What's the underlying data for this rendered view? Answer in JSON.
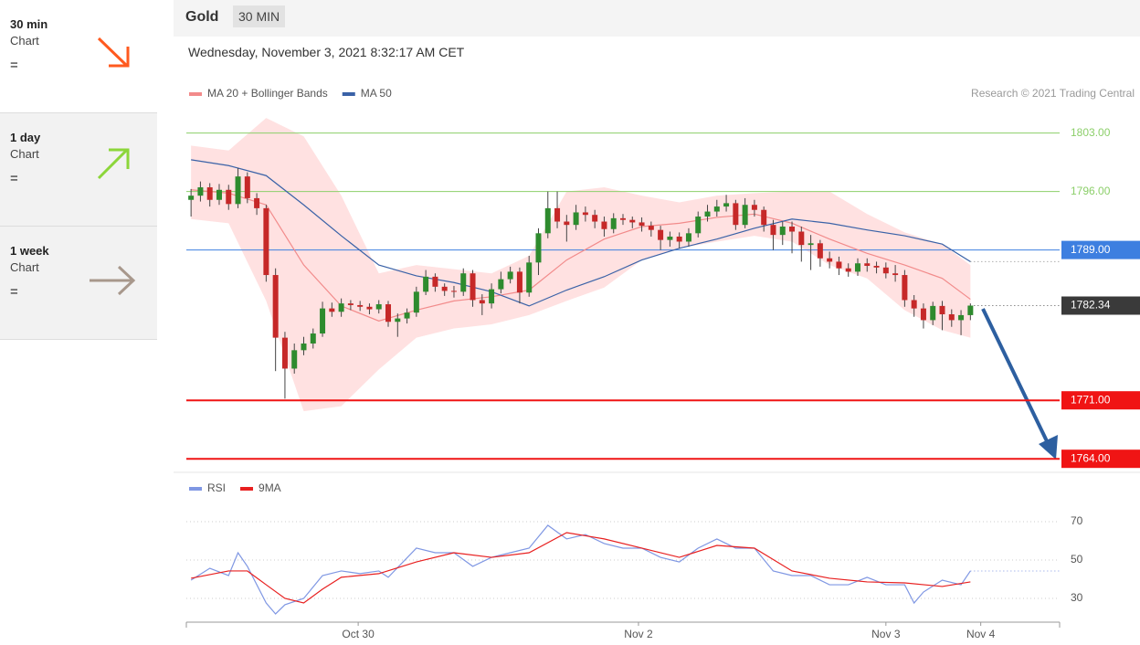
{
  "sidebar": [
    {
      "period": "30 min",
      "label": "Chart",
      "signal": "="
    },
    {
      "period": "1 day",
      "label": "Chart",
      "signal": "="
    },
    {
      "period": "1 week",
      "label": "Chart",
      "signal": "="
    }
  ],
  "header": {
    "instrument": "Gold",
    "timeframe": "30 MIN",
    "timestamp": "Wednesday, November 3, 2021 8:32:17 AM CET"
  },
  "chart_data": [
    {
      "type": "candlestick",
      "credit": "Research © 2021 Trading Central",
      "xlim": [
        -0.5,
        92.5
      ],
      "ylim": [
        1762.6,
        1805.8
      ],
      "up_color": "#2e8b2e",
      "down_color": "#c62828",
      "candles": {
        "open": [
          1795.0,
          1795.5,
          1796.5,
          1795.0,
          1796.2,
          1794.5,
          1797.8,
          1795.2,
          1794.0,
          1786.0,
          1778.5,
          1774.8,
          1777.0,
          1777.8,
          1779.0,
          1782.0,
          1781.6,
          1782.6,
          1782.4,
          1782.2,
          1781.9,
          1782.5,
          1780.4,
          1780.8,
          1781.5,
          1784.0,
          1785.8,
          1784.6,
          1784.1,
          1784.0,
          1786.2,
          1783.0,
          1782.6,
          1784.3,
          1785.5,
          1786.4,
          1783.9,
          1787.5,
          1791.0,
          1794.0,
          1792.4,
          1792.0,
          1793.5,
          1793.2,
          1792.4,
          1791.5,
          1792.8,
          1792.6,
          1792.3,
          1791.9,
          1791.4,
          1790.2,
          1790.6,
          1790.0,
          1791.0,
          1793.0,
          1793.6,
          1794.2,
          1794.6,
          1792.0,
          1794.4,
          1793.8,
          1792.0,
          1790.8,
          1791.8,
          1791.2,
          1789.6,
          1789.8,
          1788.0,
          1787.6,
          1786.8,
          1786.4,
          1787.4,
          1787.1,
          1786.9,
          1786.2,
          1786.0,
          1783.0,
          1782.0,
          1780.6,
          1782.3,
          1781.3,
          1780.6,
          1781.2
        ],
        "high": [
          1796.3,
          1797.2,
          1797.0,
          1796.9,
          1796.8,
          1798.8,
          1798.3,
          1795.8,
          1794.4,
          1786.8,
          1779.2,
          1777.8,
          1778.6,
          1779.6,
          1782.8,
          1782.7,
          1783.2,
          1783.0,
          1782.9,
          1782.6,
          1783.0,
          1782.9,
          1781.4,
          1782.0,
          1784.6,
          1786.6,
          1786.2,
          1785.0,
          1784.7,
          1786.8,
          1786.6,
          1783.7,
          1785.0,
          1786.4,
          1787.0,
          1786.9,
          1788.3,
          1791.6,
          1796.0,
          1796.0,
          1793.2,
          1794.4,
          1794.2,
          1793.8,
          1793.0,
          1793.4,
          1793.3,
          1793.0,
          1792.9,
          1792.4,
          1791.9,
          1791.2,
          1791.1,
          1791.6,
          1793.6,
          1794.4,
          1795.0,
          1795.6,
          1795.0,
          1795.2,
          1795.0,
          1794.2,
          1792.6,
          1792.4,
          1792.4,
          1791.8,
          1790.8,
          1790.2,
          1788.8,
          1788.2,
          1787.4,
          1788.0,
          1788.0,
          1787.6,
          1787.5,
          1787.2,
          1786.6,
          1783.6,
          1782.6,
          1782.8,
          1782.9,
          1781.9,
          1781.8,
          1782.6
        ],
        "low": [
          1793.0,
          1794.8,
          1794.2,
          1794.4,
          1793.8,
          1794.0,
          1794.6,
          1793.2,
          1785.2,
          1774.5,
          1771.2,
          1774.2,
          1776.4,
          1777.2,
          1778.6,
          1781.0,
          1781.0,
          1781.8,
          1781.7,
          1781.3,
          1781.4,
          1779.8,
          1778.6,
          1780.2,
          1781.0,
          1783.6,
          1784.0,
          1783.5,
          1783.3,
          1783.5,
          1782.2,
          1781.2,
          1782.0,
          1783.8,
          1785.0,
          1782.6,
          1783.4,
          1786.0,
          1790.4,
          1791.6,
          1790.0,
          1791.4,
          1792.4,
          1791.6,
          1790.6,
          1791.0,
          1792.0,
          1791.6,
          1791.2,
          1790.6,
          1789.0,
          1789.4,
          1789.2,
          1789.4,
          1790.5,
          1792.4,
          1793.0,
          1793.6,
          1791.4,
          1791.6,
          1793.0,
          1791.2,
          1789.0,
          1789.6,
          1788.6,
          1787.6,
          1786.6,
          1787.0,
          1786.8,
          1786.0,
          1785.8,
          1785.9,
          1786.4,
          1786.2,
          1785.6,
          1785.2,
          1782.2,
          1781.0,
          1779.6,
          1780.0,
          1779.4,
          1779.8,
          1778.8,
          1780.6
        ],
        "close": [
          1795.5,
          1796.5,
          1795.0,
          1796.2,
          1794.5,
          1797.8,
          1795.2,
          1794.0,
          1786.0,
          1778.5,
          1774.8,
          1777.0,
          1777.8,
          1779.0,
          1782.0,
          1781.6,
          1782.6,
          1782.4,
          1782.2,
          1781.9,
          1782.5,
          1780.4,
          1780.8,
          1781.5,
          1784.0,
          1785.8,
          1784.6,
          1784.1,
          1784.0,
          1786.2,
          1783.0,
          1782.6,
          1784.3,
          1785.5,
          1786.4,
          1783.9,
          1787.5,
          1791.0,
          1794.0,
          1792.4,
          1792.0,
          1793.5,
          1793.2,
          1792.4,
          1791.5,
          1792.8,
          1792.6,
          1792.3,
          1791.9,
          1791.4,
          1790.2,
          1790.6,
          1790.0,
          1791.0,
          1793.0,
          1793.6,
          1794.2,
          1794.6,
          1792.0,
          1794.4,
          1793.8,
          1792.0,
          1790.8,
          1791.8,
          1791.2,
          1789.6,
          1789.8,
          1788.0,
          1787.6,
          1786.8,
          1786.4,
          1787.4,
          1787.1,
          1786.9,
          1786.2,
          1786.0,
          1783.0,
          1782.0,
          1780.6,
          1782.3,
          1781.3,
          1780.6,
          1781.2,
          1782.34
        ]
      },
      "series": [
        {
          "name": "MA 20 + Bollinger Bands",
          "color": "#f28b8b",
          "band_color": "#ffd9d9",
          "x": [
            0,
            4,
            8,
            12,
            16,
            20,
            24,
            28,
            32,
            36,
            40,
            44,
            48,
            52,
            56,
            60,
            64,
            68,
            72,
            76,
            80,
            83
          ],
          "values": [
            1796.2,
            1795.8,
            1794.4,
            1787.2,
            1782.3,
            1780.5,
            1781.8,
            1782.9,
            1783.4,
            1784.2,
            1787.8,
            1790.3,
            1791.8,
            1792.2,
            1792.9,
            1793.3,
            1792.2,
            1790.3,
            1788.6,
            1787.2,
            1785.6,
            1783.1
          ],
          "upper": [
            1801.5,
            1800.9,
            1804.8,
            1802.6,
            1795.5,
            1786.2,
            1787.2,
            1786.7,
            1786.2,
            1788.3,
            1796.0,
            1796.5,
            1795.5,
            1794.7,
            1795.5,
            1795.8,
            1796.0,
            1796.0,
            1793.3,
            1791.1,
            1789.7,
            1787.2
          ],
          "lower": [
            1792.7,
            1792.2,
            1782.9,
            1769.7,
            1770.3,
            1774.7,
            1778.5,
            1779.6,
            1780.1,
            1781.2,
            1782.9,
            1784.5,
            1787.8,
            1789.2,
            1790.0,
            1790.7,
            1790.0,
            1787.2,
            1785.6,
            1781.8,
            1779.4,
            1778.5
          ]
        },
        {
          "name": "MA 50",
          "color": "#3a62a7",
          "x": [
            0,
            4,
            8,
            12,
            16,
            20,
            24,
            28,
            32,
            36,
            40,
            44,
            48,
            52,
            56,
            60,
            64,
            68,
            72,
            76,
            80,
            83
          ],
          "values": [
            1799.8,
            1799.1,
            1797.9,
            1794.4,
            1790.7,
            1787.2,
            1785.9,
            1785.1,
            1784.0,
            1782.3,
            1784.2,
            1785.8,
            1787.8,
            1789.2,
            1790.3,
            1791.6,
            1792.7,
            1792.2,
            1791.4,
            1790.7,
            1789.7,
            1787.6
          ]
        }
      ],
      "levels": [
        {
          "value": 1803,
          "label": "1803.00",
          "color": "#8ccf6a",
          "width": 1,
          "boxed": false
        },
        {
          "value": 1796,
          "label": "1796.00",
          "color": "#8ccf6a",
          "width": 1,
          "boxed": false
        },
        {
          "value": 1789,
          "label": "1789.00",
          "color": "#3d7fe0",
          "width": 1,
          "boxed": true
        },
        {
          "value": 1771,
          "label": "1771.00",
          "color": "#f01414",
          "width": 2,
          "boxed": true
        },
        {
          "value": 1764,
          "label": "1764.00",
          "color": "#f01414",
          "width": 2,
          "boxed": true
        }
      ],
      "current": {
        "value": 1782.34,
        "color": "#3a3a3a"
      }
    },
    {
      "type": "line",
      "xlim": [
        -0.5,
        92.5
      ],
      "ylim": [
        17.6,
        94.3
      ],
      "yticks": [
        30,
        50,
        70
      ],
      "grid": true,
      "xticks": [
        {
          "value": 17.8,
          "label": "Oct 30"
        },
        {
          "value": 47.65,
          "label": "Nov 2"
        },
        {
          "value": 74.0,
          "label": "Nov 3"
        },
        {
          "value": 84.1,
          "label": "Nov 4"
        }
      ],
      "series": [
        {
          "name": "RSI",
          "color": "#7f97e3",
          "x": [
            0,
            2,
            4,
            5,
            6,
            8,
            9,
            10,
            12,
            14,
            16,
            18,
            20,
            21,
            24,
            26,
            28,
            30,
            32,
            34,
            36,
            38,
            40,
            42,
            44,
            46,
            48,
            50,
            52,
            54,
            56,
            58,
            60,
            62,
            64,
            66,
            68,
            70,
            72,
            74,
            76,
            77,
            78,
            80,
            82,
            83
          ],
          "values": [
            39.5,
            45.7,
            41.9,
            53.8,
            46.7,
            27.6,
            21.9,
            26.7,
            30,
            41.9,
            44.3,
            42.9,
            44.3,
            41,
            56.2,
            53.8,
            53.8,
            46.7,
            51.4,
            53.8,
            56.2,
            68.1,
            61,
            63.3,
            58.6,
            56.2,
            56.2,
            51.4,
            49,
            56.2,
            61,
            56.2,
            56.2,
            44.3,
            41.9,
            41.9,
            37.1,
            37.1,
            41,
            37.1,
            37.1,
            27.6,
            33.3,
            39.5,
            37.1,
            44.3
          ]
        },
        {
          "name": "9MA",
          "color": "#e82020",
          "x": [
            0,
            4,
            6,
            8,
            10,
            12,
            14,
            16,
            20,
            24,
            28,
            32,
            36,
            40,
            44,
            48,
            52,
            56,
            60,
            64,
            68,
            72,
            76,
            80,
            83
          ],
          "values": [
            40.5,
            44.3,
            44.3,
            37.1,
            30,
            27.6,
            34.8,
            41,
            42.9,
            49,
            53.8,
            51.4,
            53.8,
            64.3,
            61,
            56.2,
            51.4,
            57.6,
            56.2,
            44.3,
            40.5,
            38.6,
            38.1,
            36.2,
            38.6
          ]
        }
      ]
    }
  ]
}
